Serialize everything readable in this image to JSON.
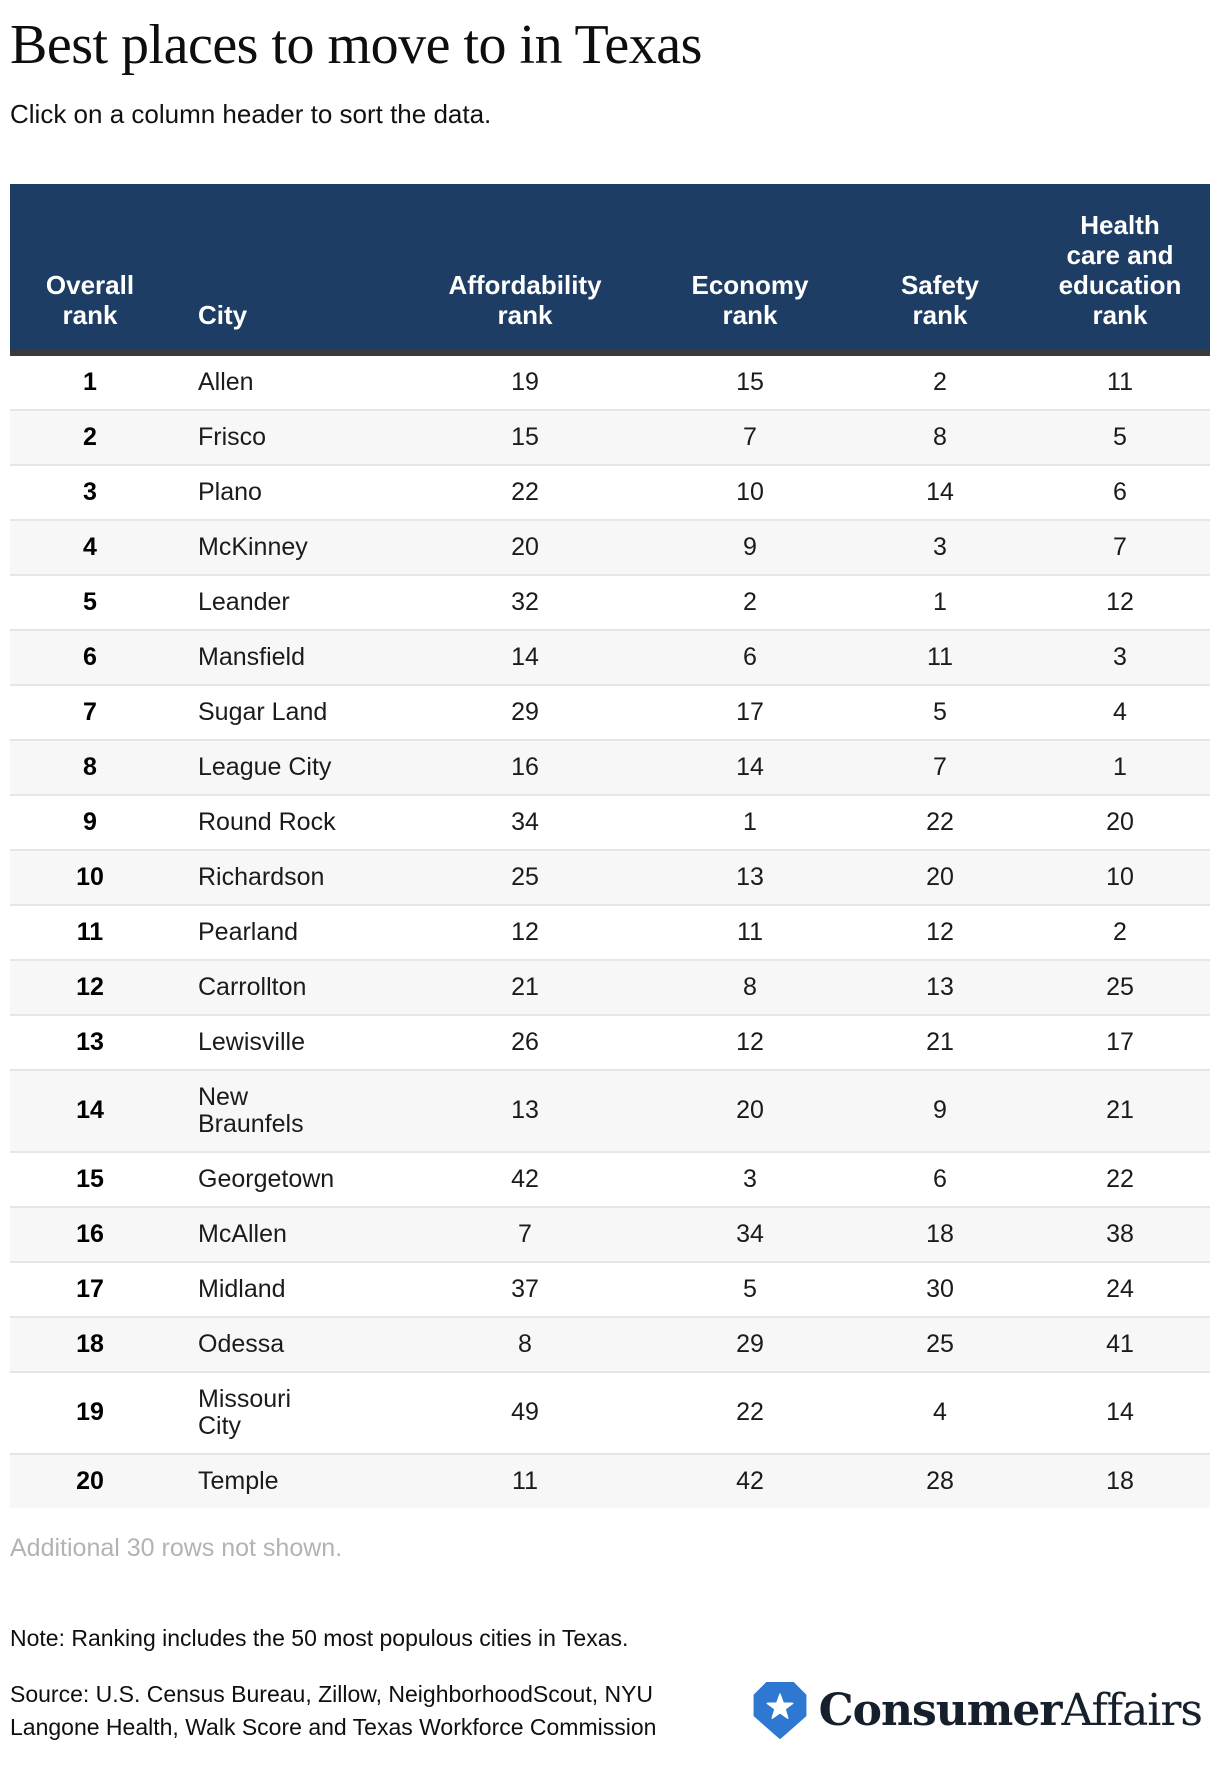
{
  "page": {
    "title": "Best places to move to in Texas",
    "subtitle": "Click on a column header to sort the data.",
    "truncation_note": "Additional 30 rows not shown.",
    "note": "Note: Ranking includes the 50 most populous cities in Texas.",
    "source": "Source: U.S. Census Bureau, Zillow, NeighborhoodScout, NYU\nLangone Health, Walk Score and Texas Workforce Commission"
  },
  "logo": {
    "brand_bold": "Consumer",
    "brand_regular": "Affairs",
    "badge_icon": "star-hexagon-badge",
    "badge_color": "#2e78d2",
    "star_color": "#ffffff",
    "wordmark_color": "#16202c"
  },
  "colors": {
    "header_bg": "#1d3d64",
    "header_text": "#ffffff",
    "header_divider": "#3a3a3a",
    "row_alt_bg": "#f7f7f7",
    "row_separator": "#e6e6e6",
    "muted_text": "#b3b3b3"
  },
  "chart_data": {
    "type": "table",
    "title": "Best places to move to in Texas",
    "columns": [
      "Overall\nrank",
      "City",
      "Affordability\nrank",
      "Economy\nrank",
      "Safety\nrank",
      "Health\ncare and\neducation\nrank"
    ],
    "column_keys": [
      "overall-rank",
      "city",
      "affordability-rank",
      "economy-rank",
      "safety-rank",
      "health-care-education-rank"
    ],
    "sortable": true,
    "rows": [
      [
        1,
        "Allen",
        19,
        15,
        2,
        11
      ],
      [
        2,
        "Frisco",
        15,
        7,
        8,
        5
      ],
      [
        3,
        "Plano",
        22,
        10,
        14,
        6
      ],
      [
        4,
        "McKinney",
        20,
        9,
        3,
        7
      ],
      [
        5,
        "Leander",
        32,
        2,
        1,
        12
      ],
      [
        6,
        "Mansfield",
        14,
        6,
        11,
        3
      ],
      [
        7,
        "Sugar Land",
        29,
        17,
        5,
        4
      ],
      [
        8,
        "League City",
        16,
        14,
        7,
        1
      ],
      [
        9,
        "Round Rock",
        34,
        1,
        22,
        20
      ],
      [
        10,
        "Richardson",
        25,
        13,
        20,
        10
      ],
      [
        11,
        "Pearland",
        12,
        11,
        12,
        2
      ],
      [
        12,
        "Carrollton",
        21,
        8,
        13,
        25
      ],
      [
        13,
        "Lewisville",
        26,
        12,
        21,
        17
      ],
      [
        14,
        "New\nBraunfels",
        13,
        20,
        9,
        21
      ],
      [
        15,
        "Georgetown",
        42,
        3,
        6,
        22
      ],
      [
        16,
        "McAllen",
        7,
        34,
        18,
        38
      ],
      [
        17,
        "Midland",
        37,
        5,
        30,
        24
      ],
      [
        18,
        "Odessa",
        8,
        29,
        25,
        41
      ],
      [
        19,
        "Missouri\nCity",
        49,
        22,
        4,
        14
      ],
      [
        20,
        "Temple",
        11,
        42,
        28,
        18
      ]
    ],
    "rows_not_shown": 30
  }
}
